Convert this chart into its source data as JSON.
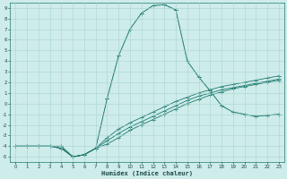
{
  "xlabel": "Humidex (Indice chaleur)",
  "ylabel": "",
  "xlim": [
    -0.5,
    23.5
  ],
  "ylim": [
    -5.5,
    9.5
  ],
  "xticks": [
    0,
    1,
    2,
    3,
    4,
    5,
    6,
    7,
    8,
    9,
    10,
    11,
    12,
    13,
    14,
    15,
    16,
    17,
    18,
    19,
    20,
    21,
    22,
    23
  ],
  "yticks": [
    9,
    8,
    7,
    6,
    5,
    4,
    3,
    2,
    1,
    0,
    -1,
    -2,
    -3,
    -4,
    -5
  ],
  "background_color": "#ceecea",
  "grid_color": "#aad4d0",
  "line_color": "#1e7a6e",
  "lines": [
    {
      "x": [
        0,
        1,
        2,
        3,
        4,
        5,
        6,
        7,
        8,
        9,
        10,
        11,
        12,
        13,
        14,
        15,
        16,
        17,
        18,
        19,
        20,
        21,
        22,
        23
      ],
      "y": [
        -4,
        -4,
        -4,
        -4,
        -4,
        -5,
        -4.8,
        -4.2,
        0.5,
        4.5,
        7,
        8.5,
        9.2,
        9.3,
        8.8,
        4,
        2.5,
        1.2,
        -0.2,
        -0.8,
        -1.0,
        -1.2,
        -1.1,
        -1.0
      ],
      "dotted": true
    },
    {
      "x": [
        0,
        1,
        2,
        3,
        4,
        5,
        6,
        7,
        8,
        9,
        10,
        11,
        12,
        13,
        14,
        15,
        16,
        17,
        18,
        19,
        20,
        21,
        22,
        23
      ],
      "y": [
        -4,
        -4,
        -4,
        -4,
        -4,
        -5,
        -4.8,
        -4.2,
        0.5,
        4.5,
        7,
        8.5,
        9.2,
        9.3,
        8.8,
        4,
        2.5,
        1.2,
        -0.2,
        -0.8,
        -1.0,
        -1.2,
        -1.1,
        -1.0
      ],
      "dotted": false
    },
    {
      "x": [
        0,
        1,
        2,
        3,
        4,
        5,
        6,
        7,
        8,
        9,
        10,
        11,
        12,
        13,
        14,
        15,
        16,
        17,
        18,
        19,
        20,
        21,
        22,
        23
      ],
      "y": [
        -4,
        -4,
        -4,
        -4,
        -4.2,
        -5,
        -4.8,
        -4.2,
        -3.8,
        -3.2,
        -2.5,
        -2.0,
        -1.5,
        -1.0,
        -0.5,
        0.0,
        0.4,
        0.8,
        1.1,
        1.4,
        1.6,
        1.8,
        2.0,
        2.2
      ],
      "dotted": false
    },
    {
      "x": [
        0,
        1,
        2,
        3,
        4,
        5,
        6,
        7,
        8,
        9,
        10,
        11,
        12,
        13,
        14,
        15,
        16,
        17,
        18,
        19,
        20,
        21,
        22,
        23
      ],
      "y": [
        -4,
        -4,
        -4,
        -4,
        -4.2,
        -5,
        -4.8,
        -4.2,
        -3.5,
        -2.8,
        -2.2,
        -1.7,
        -1.2,
        -0.7,
        -0.2,
        0.3,
        0.7,
        1.0,
        1.3,
        1.5,
        1.7,
        1.9,
        2.1,
        2.3
      ],
      "dotted": false
    },
    {
      "x": [
        0,
        1,
        2,
        3,
        4,
        5,
        6,
        7,
        8,
        9,
        10,
        11,
        12,
        13,
        14,
        15,
        16,
        17,
        18,
        19,
        20,
        21,
        22,
        23
      ],
      "y": [
        -4,
        -4,
        -4,
        -4,
        -4.2,
        -5,
        -4.8,
        -4.2,
        -3.2,
        -2.4,
        -1.8,
        -1.3,
        -0.8,
        -0.3,
        0.2,
        0.6,
        1.0,
        1.3,
        1.6,
        1.8,
        2.0,
        2.2,
        2.4,
        2.6
      ],
      "dotted": false
    }
  ],
  "figsize": [
    3.2,
    2.0
  ],
  "dpi": 100
}
